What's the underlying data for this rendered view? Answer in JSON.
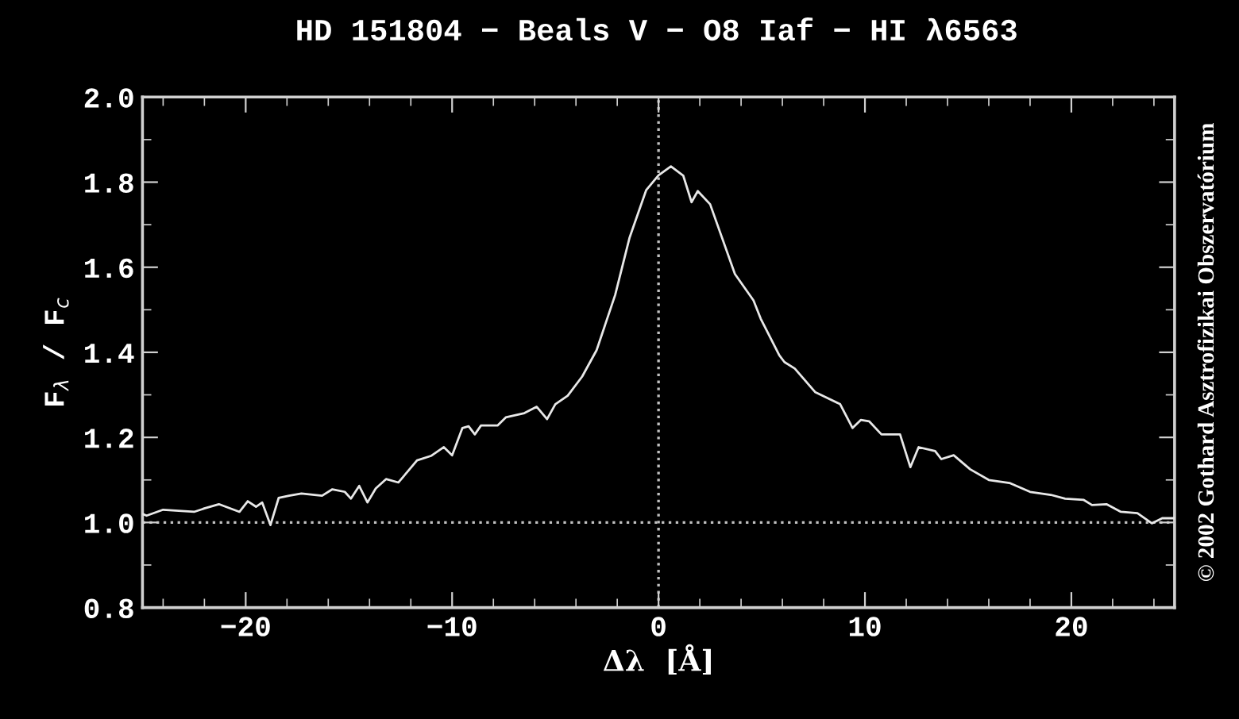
{
  "chart_data": {
    "type": "line",
    "title": "HD 151804 − Beals V − O8 Iaf − HI λ6563",
    "xlabel": "Δλ  [Å]",
    "ylabel": "F$_{λ}$ / F$_{c}$",
    "annotations": [
      "© 2002 Gothard Asztrofizikai Obszervatórium"
    ],
    "series": [
      {
        "color": "#e8e8e8",
        "x": [
          -25.0,
          -24.8,
          -24.0,
          -22.5,
          -22.0,
          -21.3,
          -20.3,
          -19.9,
          -19.5,
          -19.2,
          -18.8,
          -18.4,
          -17.9,
          -17.3,
          -16.3,
          -15.8,
          -15.2,
          -14.9,
          -14.5,
          -14.1,
          -13.7,
          -13.2,
          -12.6,
          -11.7,
          -11.0,
          -10.4,
          -10.0,
          -9.5,
          -9.2,
          -8.9,
          -8.6,
          -7.8,
          -7.4,
          -6.5,
          -5.9,
          -5.4,
          -5.0,
          -4.4,
          -3.7,
          -3.0,
          -2.1,
          -1.4,
          -0.6,
          0.0,
          0.6,
          1.2,
          1.6,
          1.9,
          2.5,
          3.7,
          4.6,
          4.95,
          5.85,
          6.1,
          6.6,
          7.6,
          8.8,
          9.4,
          9.8,
          10.2,
          10.8,
          11.7,
          12.2,
          12.6,
          13.4,
          13.7,
          14.3,
          15.1,
          16.0,
          17.0,
          18.0,
          19.0,
          19.7,
          20.6,
          21.0,
          21.7,
          22.4,
          23.2,
          23.9,
          24.4,
          25.0
        ],
        "values": [
          1.02,
          1.016,
          1.03,
          1.025,
          1.033,
          1.043,
          1.025,
          1.05,
          1.037,
          1.047,
          0.994,
          1.058,
          1.063,
          1.068,
          1.063,
          1.078,
          1.072,
          1.056,
          1.086,
          1.047,
          1.08,
          1.102,
          1.094,
          1.146,
          1.157,
          1.177,
          1.158,
          1.222,
          1.226,
          1.207,
          1.228,
          1.228,
          1.247,
          1.257,
          1.272,
          1.243,
          1.278,
          1.298,
          1.343,
          1.405,
          1.535,
          1.67,
          1.781,
          1.816,
          1.837,
          1.815,
          1.753,
          1.779,
          1.748,
          1.584,
          1.522,
          1.479,
          1.393,
          1.377,
          1.362,
          1.306,
          1.278,
          1.222,
          1.241,
          1.238,
          1.207,
          1.207,
          1.13,
          1.177,
          1.168,
          1.149,
          1.158,
          1.125,
          1.1,
          1.093,
          1.072,
          1.065,
          1.056,
          1.053,
          1.041,
          1.043,
          1.025,
          1.022,
          0.998,
          1.01,
          1.01
        ]
      }
    ],
    "xlim": [
      -25,
      25
    ],
    "xticks": [
      -20,
      -10,
      0,
      10,
      20
    ],
    "ylim": [
      0.8,
      2.0
    ],
    "yticks": [
      0.8,
      {
        "value": 1,
        "label": "1.0"
      },
      1.2,
      1.4,
      1.6,
      1.8,
      {
        "value": 2,
        "label": "2.0"
      }
    ],
    "ref_lines": [
      {
        "axis": "y",
        "value": 1.0,
        "color": "#c0c0c0",
        "line_style": "dotted"
      },
      {
        "axis": "x",
        "value": 0,
        "color": "#c0c0c0",
        "line_style": "dotted"
      }
    ],
    "grid": false,
    "legend": false,
    "marker": "none",
    "line_style": "solid"
  }
}
